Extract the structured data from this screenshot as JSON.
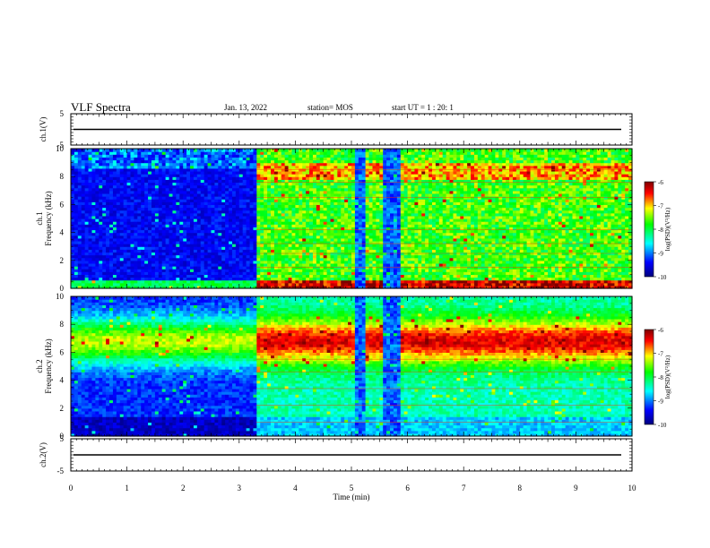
{
  "header": {
    "title": "VLF Spectra",
    "date": "Jan. 13, 2022",
    "station": "station= MOS",
    "start": "start  UT =  1 : 20: 1"
  },
  "chart_data": [
    {
      "type": "line",
      "title": "",
      "ylabel": "ch.1(V)",
      "ylim": [
        -5,
        5
      ],
      "yticks": [
        "5",
        "-5"
      ],
      "xlim": [
        0,
        10
      ],
      "series": [
        {
          "values_note": "",
          "level": 0
        }
      ]
    },
    {
      "type": "heatmap",
      "ylabel": "ch.1",
      "ylabel2": "Frequency  (kHz)",
      "ylim": [
        0,
        10
      ],
      "yticks": [
        "0",
        "2",
        "4",
        "6",
        "8",
        "10"
      ],
      "xlim": [
        0,
        10
      ],
      "colorbar": {
        "label": "log(PSD)(V²/Hz)",
        "range": [
          -10,
          -6
        ],
        "ticks": [
          "-6",
          "-7",
          "-8",
          "-9",
          "-10"
        ]
      },
      "quiet_intervals_min": [
        [
          0.0,
          3.3
        ]
      ],
      "impulsive_bursts_min": [
        5.05,
        5.15,
        5.6,
        5.75
      ]
    },
    {
      "type": "heatmap",
      "ylabel": "ch.2",
      "ylabel2": "Frequency  (kHz)",
      "ylim": [
        0,
        10
      ],
      "yticks": [
        "0",
        "2",
        "4",
        "6",
        "8",
        "10"
      ],
      "xlim": [
        0,
        10
      ],
      "colorbar": {
        "label": "log(PSD)(V²/Hz)",
        "range": [
          -10,
          -6
        ],
        "ticks": [
          "-6",
          "-7",
          "-8",
          "-9",
          "-10"
        ]
      },
      "band_center_khz": 6.8
    },
    {
      "type": "line",
      "ylabel": "ch.2(V)",
      "ylim": [
        -5,
        5
      ],
      "yticks": [
        "5",
        "-5"
      ],
      "xlim": [
        0,
        10
      ],
      "series": [
        {
          "level": 0
        }
      ]
    }
  ],
  "xaxis": {
    "label": "Time  (min)",
    "ticks": [
      "0",
      "1",
      "2",
      "3",
      "4",
      "5",
      "6",
      "7",
      "8",
      "9",
      "10"
    ]
  },
  "colors": {
    "scale": [
      "#00007f",
      "#0000ff",
      "#00ffff",
      "#00ff00",
      "#ffff00",
      "#ff0000",
      "#7f0000"
    ]
  }
}
